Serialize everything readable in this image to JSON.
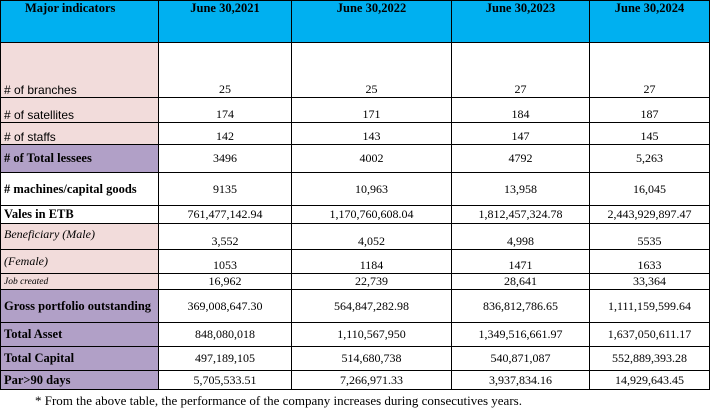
{
  "table": {
    "header": [
      "Major indicators",
      "June 30,2021",
      "June 30,2022",
      "June 30,2023",
      "June 30,2024"
    ],
    "rows": [
      {
        "label": "# of branches",
        "values": [
          "25",
          "25",
          "27",
          "27"
        ]
      },
      {
        "label": "# of satellites",
        "values": [
          "174",
          "171",
          "184",
          "187"
        ]
      },
      {
        "label": "# of staffs",
        "values": [
          "142",
          "143",
          "147",
          "145"
        ]
      },
      {
        "label": "# of Total lessees",
        "values": [
          "3496",
          "4002",
          "4792",
          "5,263"
        ]
      },
      {
        "label": "# machines/capital goods",
        "values": [
          "9135",
          "10,963",
          "13,958",
          "16,045"
        ]
      },
      {
        "label": "Vales in ETB",
        "values": [
          "761,477,142.94",
          "1,170,760,608.04",
          "1,812,457,324.78",
          "2,443,929,897.47"
        ]
      },
      {
        "label": "Beneficiary (Male)",
        "values": [
          "3,552",
          "4,052",
          "4,998",
          "5535"
        ]
      },
      {
        "label": "(Female)",
        "values": [
          "1053",
          "1184",
          "1471",
          "1633"
        ]
      },
      {
        "label": "Job created",
        "values": [
          "16,962",
          "22,739",
          "28,641",
          "33,364"
        ]
      },
      {
        "label": "Gross portfolio outstanding",
        "values": [
          "369,008,647.30",
          "564,847,282.98",
          "836,812,786.65",
          "1,111,159,599.64"
        ]
      },
      {
        "label": "Total Asset",
        "values": [
          "848,080,018",
          "1,110,567,950",
          "1,349,516,661.97",
          "1,637,050,611.17"
        ]
      },
      {
        "label": "Total Capital",
        "values": [
          "497,189,105",
          "514,680,738",
          "540,871,087",
          "552,889,393.28"
        ]
      },
      {
        "label": "Par>90 days",
        "values": [
          "5,705,533.51",
          "7,266,971.33",
          "3,937,834.16",
          "14,929,643.45"
        ]
      }
    ]
  },
  "footnote": "* From the above table, the performance of the company increases during consecutives years.",
  "colors": {
    "header": "#00b0f0",
    "label_pink": "#f2dcdb",
    "label_purple": "#b1a0c7"
  }
}
